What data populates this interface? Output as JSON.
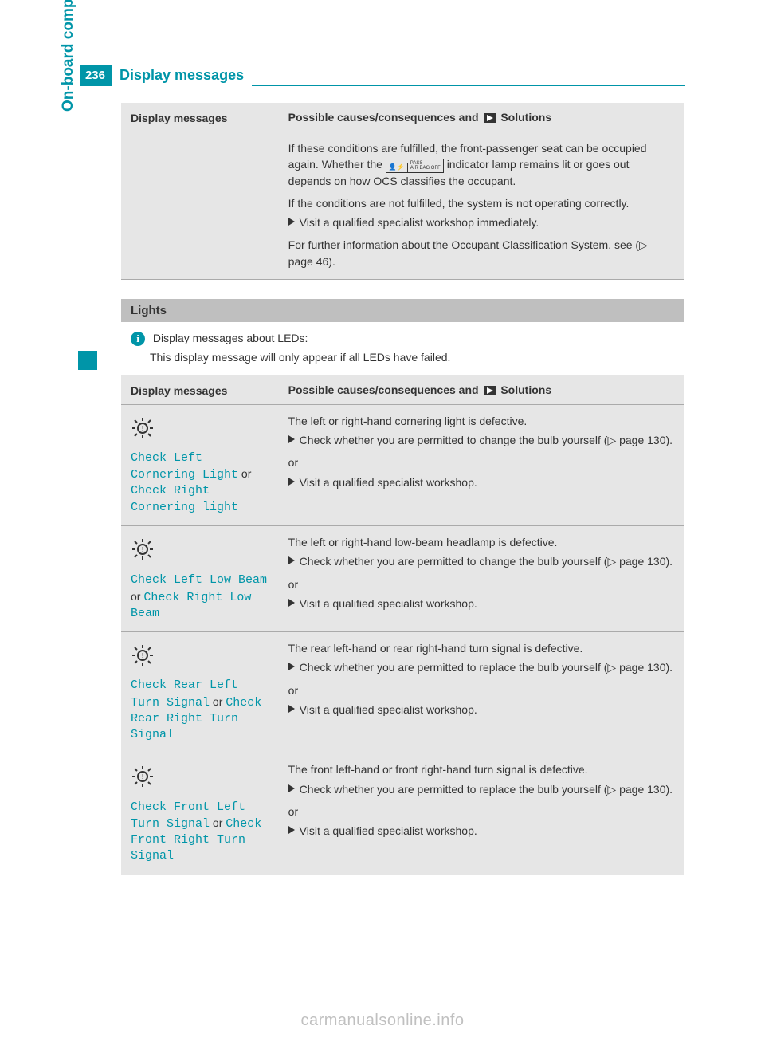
{
  "page": {
    "number": "236",
    "title": "Display messages",
    "side_label": "On-board computer and displays"
  },
  "colors": {
    "brand": "#0095a8",
    "header_bg": "#e6e6e6",
    "section_bg": "#bfbfbf",
    "text": "#333333",
    "code": "#0095a8",
    "rule": "#aaaaaa",
    "watermark": "#c0c0c0"
  },
  "top_table": {
    "headers": {
      "left": "Display messages",
      "right_prefix": "Possible causes/consequences and ",
      "right_suffix": " Solutions"
    },
    "row": {
      "p1_a": "If these conditions are fulfilled, the front-passenger seat can be occupied again. Whether the ",
      "p1_b": " indicator lamp remains lit or goes out depends on how OCS classifies the occupant.",
      "pass_box": {
        "a": "👤",
        "b": "PASS\nAIR BAG OFF"
      },
      "p2": "If the conditions are not fulfilled, the system is not operating correctly.",
      "bullet": "Visit a qualified specialist workshop immediately.",
      "p3": "For further information about the Occupant Classification System, see (▷ page 46)."
    }
  },
  "lights": {
    "section_title": "Lights",
    "info_label": "Display messages about LEDs:",
    "info_text": "This display message will only appear if all LEDs have failed.",
    "headers": {
      "left": "Display messages",
      "right_prefix": "Possible causes/consequences and ",
      "right_suffix": " Solutions"
    },
    "rows": [
      {
        "code_a": "Check Left Cornering Light",
        "or": " or ",
        "code_b": "Check Right Cornering light",
        "desc": "The left or right-hand cornering light is defective.",
        "bullet1": "Check whether you are permitted to change the bulb yourself (▷ page 130).",
        "or_line": "or",
        "bullet2": "Visit a qualified specialist workshop."
      },
      {
        "code_a": "Check Left Low Beam",
        "or": " or ",
        "code_b": "Check Right Low Beam",
        "desc": "The left or right-hand low-beam headlamp is defective.",
        "bullet1": "Check whether you are permitted to change the bulb yourself (▷ page 130).",
        "or_line": "or",
        "bullet2": "Visit a qualified specialist workshop."
      },
      {
        "code_a": "Check Rear Left Turn Signal",
        "or": " or ",
        "code_b": "Check Rear Right Turn Signal",
        "desc": "The rear left-hand or rear right-hand turn signal is defective.",
        "bullet1": "Check whether you are permitted to replace the bulb yourself (▷ page 130).",
        "or_line": "or",
        "bullet2": "Visit a qualified specialist workshop."
      },
      {
        "code_a": "Check Front Left Turn Signal",
        "or": " or ",
        "code_b": "Check Front Right Turn Signal",
        "desc": "The front left-hand or front right-hand turn signal is defective.",
        "bullet1": "Check whether you are permitted to replace the bulb yourself (▷ page 130).",
        "or_line": "or",
        "bullet2": "Visit a qualified specialist workshop."
      }
    ]
  },
  "watermark": "carmanualsonline.info"
}
